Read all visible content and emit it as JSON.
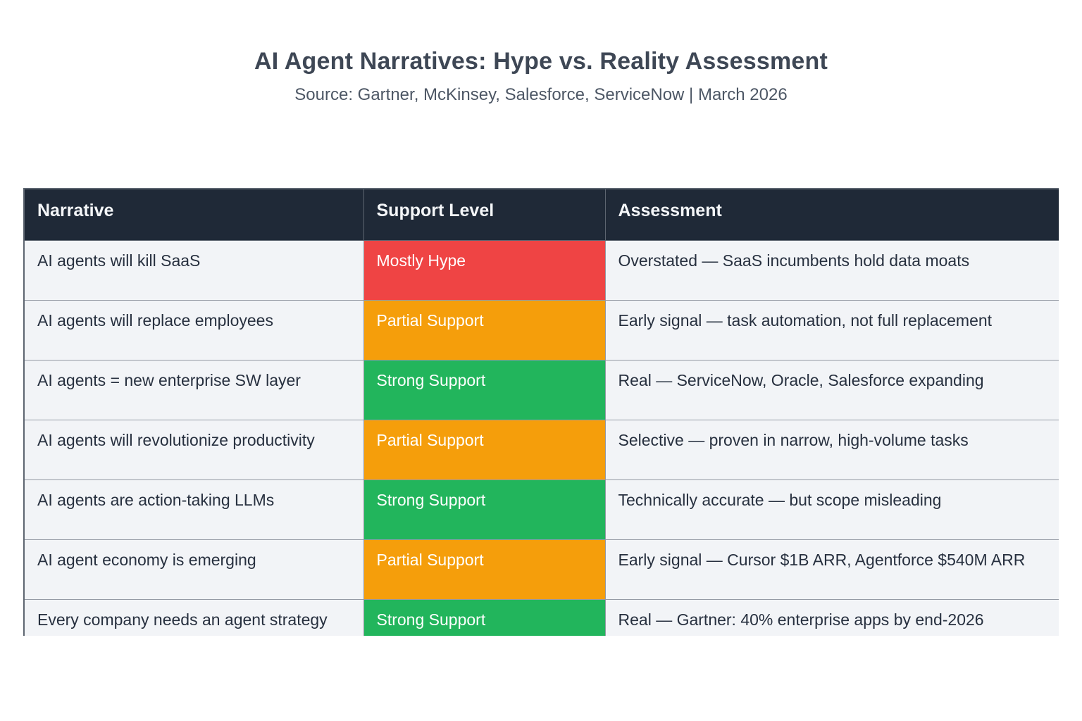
{
  "header": {
    "title": "AI Agent Narratives: Hype vs. Reality Assessment",
    "subtitle": "Source: Gartner, McKinsey, Salesforce, ServiceNow | March 2026"
  },
  "colors": {
    "header_bg": "#1f2937",
    "row_bg": "#f2f4f7",
    "mostly_hype": "#ef4444",
    "partial_support": "#f59e0b",
    "strong_support": "#22b55c"
  },
  "chart_data": {
    "type": "table",
    "title": "AI Agent Narratives: Hype vs. Reality Assessment",
    "subtitle": "Source: Gartner, McKinsey, Salesforce, ServiceNow | March 2026",
    "columns": [
      "Narrative",
      "Support Level",
      "Assessment"
    ],
    "rows": [
      {
        "narrative": "AI agents will kill SaaS",
        "support_level": "Mostly Hype",
        "support_color": "#ef4444",
        "assessment": "Overstated — SaaS incumbents hold data moats"
      },
      {
        "narrative": "AI agents will replace employees",
        "support_level": "Partial Support",
        "support_color": "#f59e0b",
        "assessment": "Early signal — task automation, not full replacement"
      },
      {
        "narrative": "AI agents = new enterprise SW layer",
        "support_level": "Strong Support",
        "support_color": "#22b55c",
        "assessment": "Real — ServiceNow, Oracle, Salesforce expanding"
      },
      {
        "narrative": "AI agents will revolutionize productivity",
        "support_level": "Partial Support",
        "support_color": "#f59e0b",
        "assessment": "Selective — proven in narrow, high-volume tasks"
      },
      {
        "narrative": "AI agents are action-taking LLMs",
        "support_level": "Strong Support",
        "support_color": "#22b55c",
        "assessment": "Technically accurate — but scope misleading"
      },
      {
        "narrative": "AI agent economy is emerging",
        "support_level": "Partial Support",
        "support_color": "#f59e0b",
        "assessment": "Early signal — Cursor $1B ARR, Agentforce $540M ARR"
      },
      {
        "narrative": "Every company needs an agent strategy",
        "support_level": "Strong Support",
        "support_color": "#22b55c",
        "assessment": "Real — Gartner: 40% enterprise apps by end-2026"
      }
    ]
  }
}
